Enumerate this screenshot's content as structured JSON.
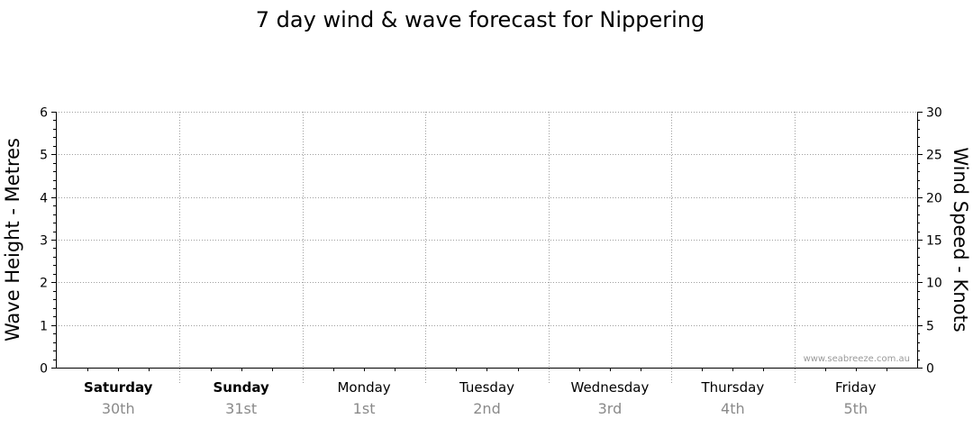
{
  "chart_data": {
    "type": "line",
    "title": "7 day wind & wave forecast for Nippering",
    "y_left": {
      "label": "Wave Height - Metres",
      "range": [
        0,
        6
      ],
      "ticks": [
        0,
        1,
        2,
        3,
        4,
        5,
        6
      ]
    },
    "y_right": {
      "label": "Wind Speed - Knots",
      "range": [
        0,
        30
      ],
      "ticks": [
        0,
        5,
        10,
        15,
        20,
        25,
        30
      ]
    },
    "days": [
      {
        "name": "Saturday",
        "date": "30th",
        "bold": true
      },
      {
        "name": "Sunday",
        "date": "31st",
        "bold": true
      },
      {
        "name": "Monday",
        "date": "1st",
        "bold": false
      },
      {
        "name": "Tuesday",
        "date": "2nd",
        "bold": false
      },
      {
        "name": "Wednesday",
        "date": "3rd",
        "bold": false
      },
      {
        "name": "Thursday",
        "date": "4th",
        "bold": false
      },
      {
        "name": "Friday",
        "date": "5th",
        "bold": false
      }
    ],
    "series": [],
    "grid": true,
    "watermark": "www.seabreeze.com.au"
  }
}
